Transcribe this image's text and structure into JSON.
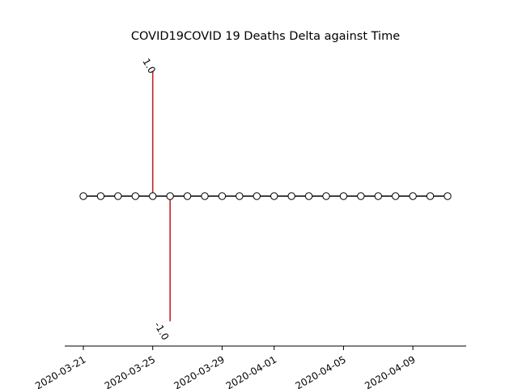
{
  "chart_data": {
    "type": "line",
    "title": "COVID19COVID 19 Deaths Delta against Time",
    "xlabel": "",
    "ylabel": "",
    "x_tick_labels": [
      "2020-03-21",
      "2020-03-25",
      "2020-03-29",
      "2020-04-01",
      "2020-04-05",
      "2020-04-09"
    ],
    "x_tick_dates": [
      "2020-03-21",
      "2020-03-25",
      "2020-03-29",
      "2020-04-01",
      "2020-04-05",
      "2020-04-09"
    ],
    "x": [
      "2020-03-21",
      "2020-03-22",
      "2020-03-23",
      "2020-03-24",
      "2020-03-25",
      "2020-03-26",
      "2020-03-27",
      "2020-03-28",
      "2020-03-29",
      "2020-03-30",
      "2020-03-31",
      "2020-04-01",
      "2020-04-02",
      "2020-04-03",
      "2020-04-04",
      "2020-04-05",
      "2020-04-06",
      "2020-04-07",
      "2020-04-08",
      "2020-04-09",
      "2020-04-10",
      "2020-04-11"
    ],
    "values": [
      0,
      0,
      0,
      0,
      0,
      0,
      0,
      0,
      0,
      0,
      0,
      0,
      0,
      0,
      0,
      0,
      0,
      0,
      0,
      0,
      0,
      0
    ],
    "stems": [
      {
        "date": "2020-03-25",
        "value": 1.0,
        "label": "1.0"
      },
      {
        "date": "2020-03-26",
        "value": -1.0,
        "label": "-1.0"
      }
    ],
    "ylim": [
      -1.1,
      1.1
    ],
    "grid": false,
    "colors": {
      "line": "#000000",
      "marker_fill": "#ffffff",
      "stem": "#c0262d"
    }
  }
}
